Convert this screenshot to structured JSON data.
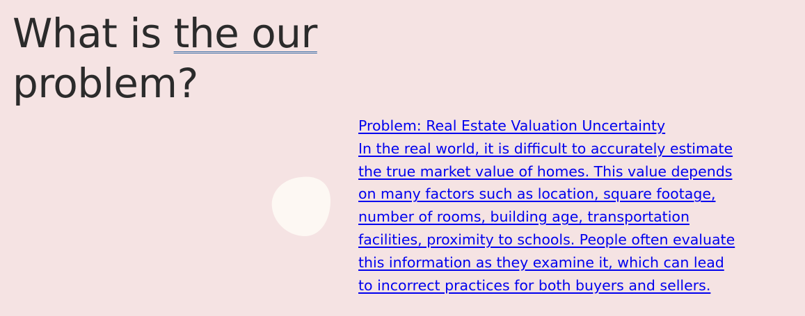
{
  "heading": {
    "prefix": "What is ",
    "underlined": "the our",
    "line2": "problem?"
  },
  "content": {
    "title": "Problem: Real Estate Valuation Uncertainty",
    "lines": [
      "In the real world, it is difficult to accurately estimate",
      "the true market value of homes. This value depends",
      "on many factors such as location, square footage,",
      "number of rooms, building age, transportation",
      "facilities, proximity to schools. People often evaluate",
      "this information as they examine it, which can lead",
      "to incorrect practices for both buyers and sellers."
    ]
  },
  "colors": {
    "background": "#f5e3e3",
    "heading": "#2b2b2b",
    "link": "#0000ee",
    "blob": "#fdf8f3"
  }
}
